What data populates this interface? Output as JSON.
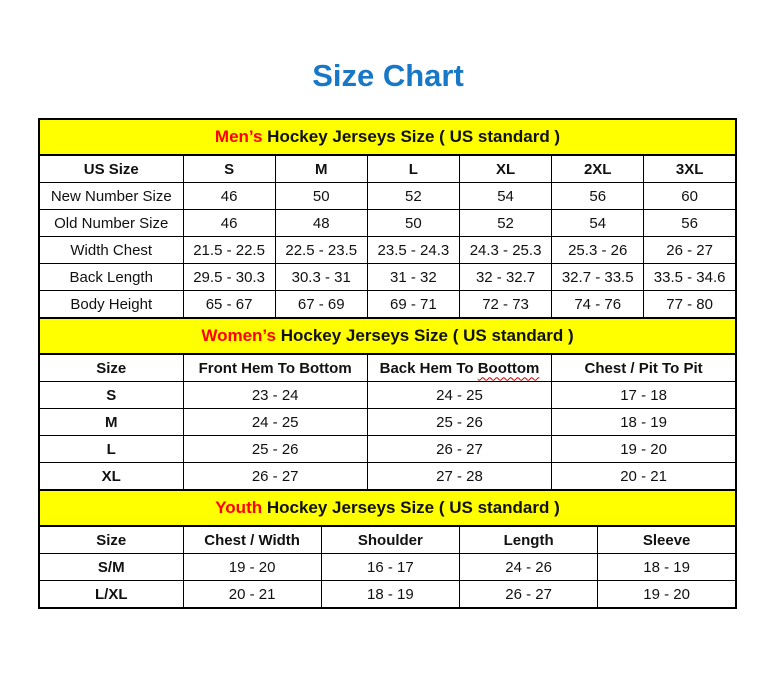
{
  "title": "Size Chart",
  "colors": {
    "title_blue": "#1778C8",
    "accent_red": "#FF0000",
    "band_yellow": "#FFFF00",
    "border_black": "#000000"
  },
  "sections": [
    {
      "id": "mens",
      "band": {
        "highlight": "Men’s",
        "rest": "Hockey Jerseys Size ( US standard )"
      },
      "columns": [
        "US Size",
        "S",
        "M",
        "L",
        "XL",
        "2XL",
        "3XL"
      ],
      "rows": [
        [
          "New Number Size",
          "46",
          "50",
          "52",
          "54",
          "56",
          "60"
        ],
        [
          "Old Number Size",
          "46",
          "48",
          "50",
          "52",
          "54",
          "56"
        ],
        [
          "Width Chest",
          "21.5 - 22.5",
          "22.5 - 23.5",
          "23.5 - 24.3",
          "24.3 - 25.3",
          "25.3 - 26",
          "26 - 27"
        ],
        [
          "Back Length",
          "29.5 - 30.3",
          "30.3 - 31",
          "31 - 32",
          "32 - 32.7",
          "32.7 - 33.5",
          "33.5 - 34.6"
        ],
        [
          "Body Height",
          "65 - 67",
          "67 - 69",
          "69 - 71",
          "72 - 73",
          "74 - 76",
          "77 - 80"
        ]
      ]
    },
    {
      "id": "womens",
      "band": {
        "highlight": "Women’s",
        "rest": "Hockey Jerseys Size ( US standard )"
      },
      "columns": [
        "Size",
        "Front Hem To Bottom",
        {
          "text": "Back Hem To Boottom",
          "wavy_word": "Boottom"
        },
        "Chest / Pit To Pit"
      ],
      "rows": [
        [
          "S",
          "23 - 24",
          "24 - 25",
          "17 - 18"
        ],
        [
          "M",
          "24 - 25",
          "25 - 26",
          "18 - 19"
        ],
        [
          "L",
          "25 - 26",
          "26 - 27",
          "19 - 20"
        ],
        [
          "XL",
          "26 - 27",
          "27 - 28",
          "20 - 21"
        ]
      ]
    },
    {
      "id": "youth",
      "band": {
        "highlight": "Youth",
        "rest": "Hockey Jerseys Size ( US standard )"
      },
      "columns": [
        "Size",
        "Chest / Width",
        "Shoulder",
        "Length",
        "Sleeve"
      ],
      "rows": [
        [
          "S/M",
          "19 - 20",
          "16 - 17",
          "24 - 26",
          "18 - 19"
        ],
        [
          "L/XL",
          "20 - 21",
          "18 - 19",
          "26 - 27",
          "19 - 20"
        ]
      ]
    }
  ]
}
